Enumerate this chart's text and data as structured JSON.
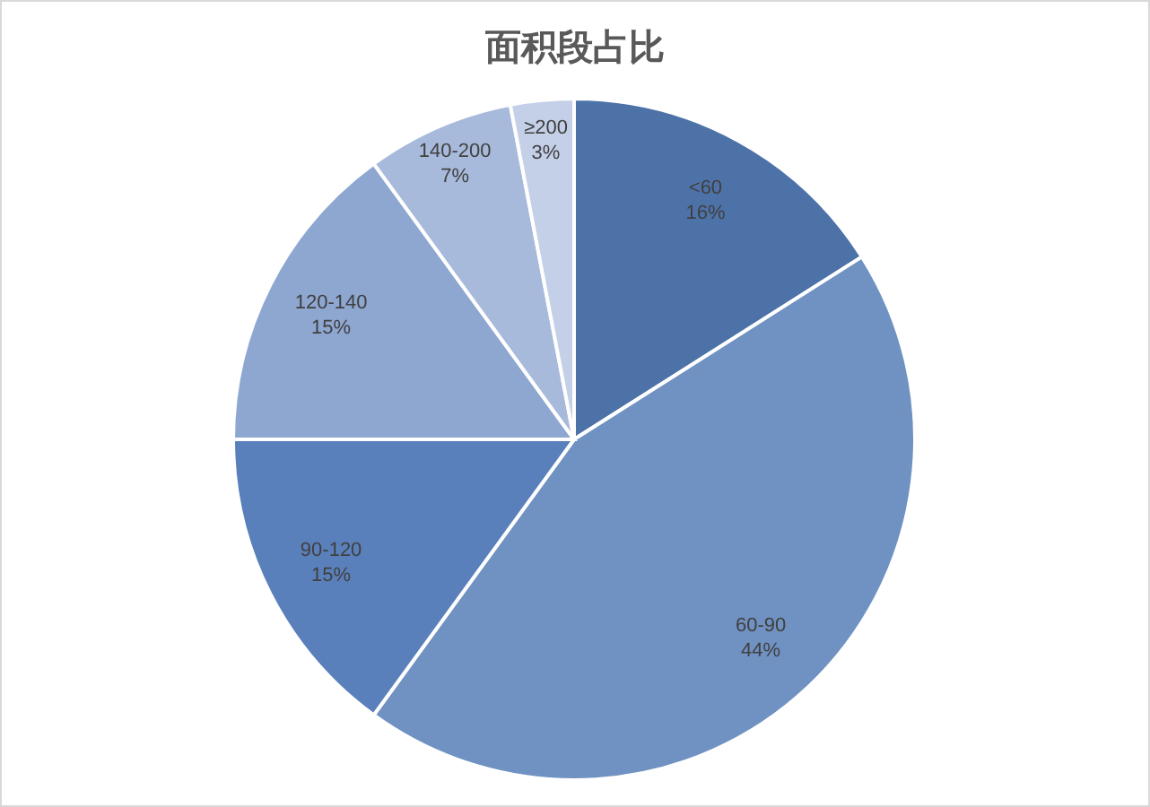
{
  "chart_data": {
    "type": "pie",
    "title": "面积段占比",
    "categories": [
      "<60",
      "60-90",
      "90-120",
      "120-140",
      "140-200",
      "≥200"
    ],
    "values": [
      16,
      44,
      15,
      15,
      7,
      3
    ],
    "value_labels": [
      "16%",
      "44%",
      "15%",
      "15%",
      "7%",
      "3%"
    ],
    "colors": [
      "#4d72a8",
      "#6f92c2",
      "#5a80bb",
      "#8ea7d1",
      "#a8badb",
      "#c4d0e7"
    ]
  }
}
